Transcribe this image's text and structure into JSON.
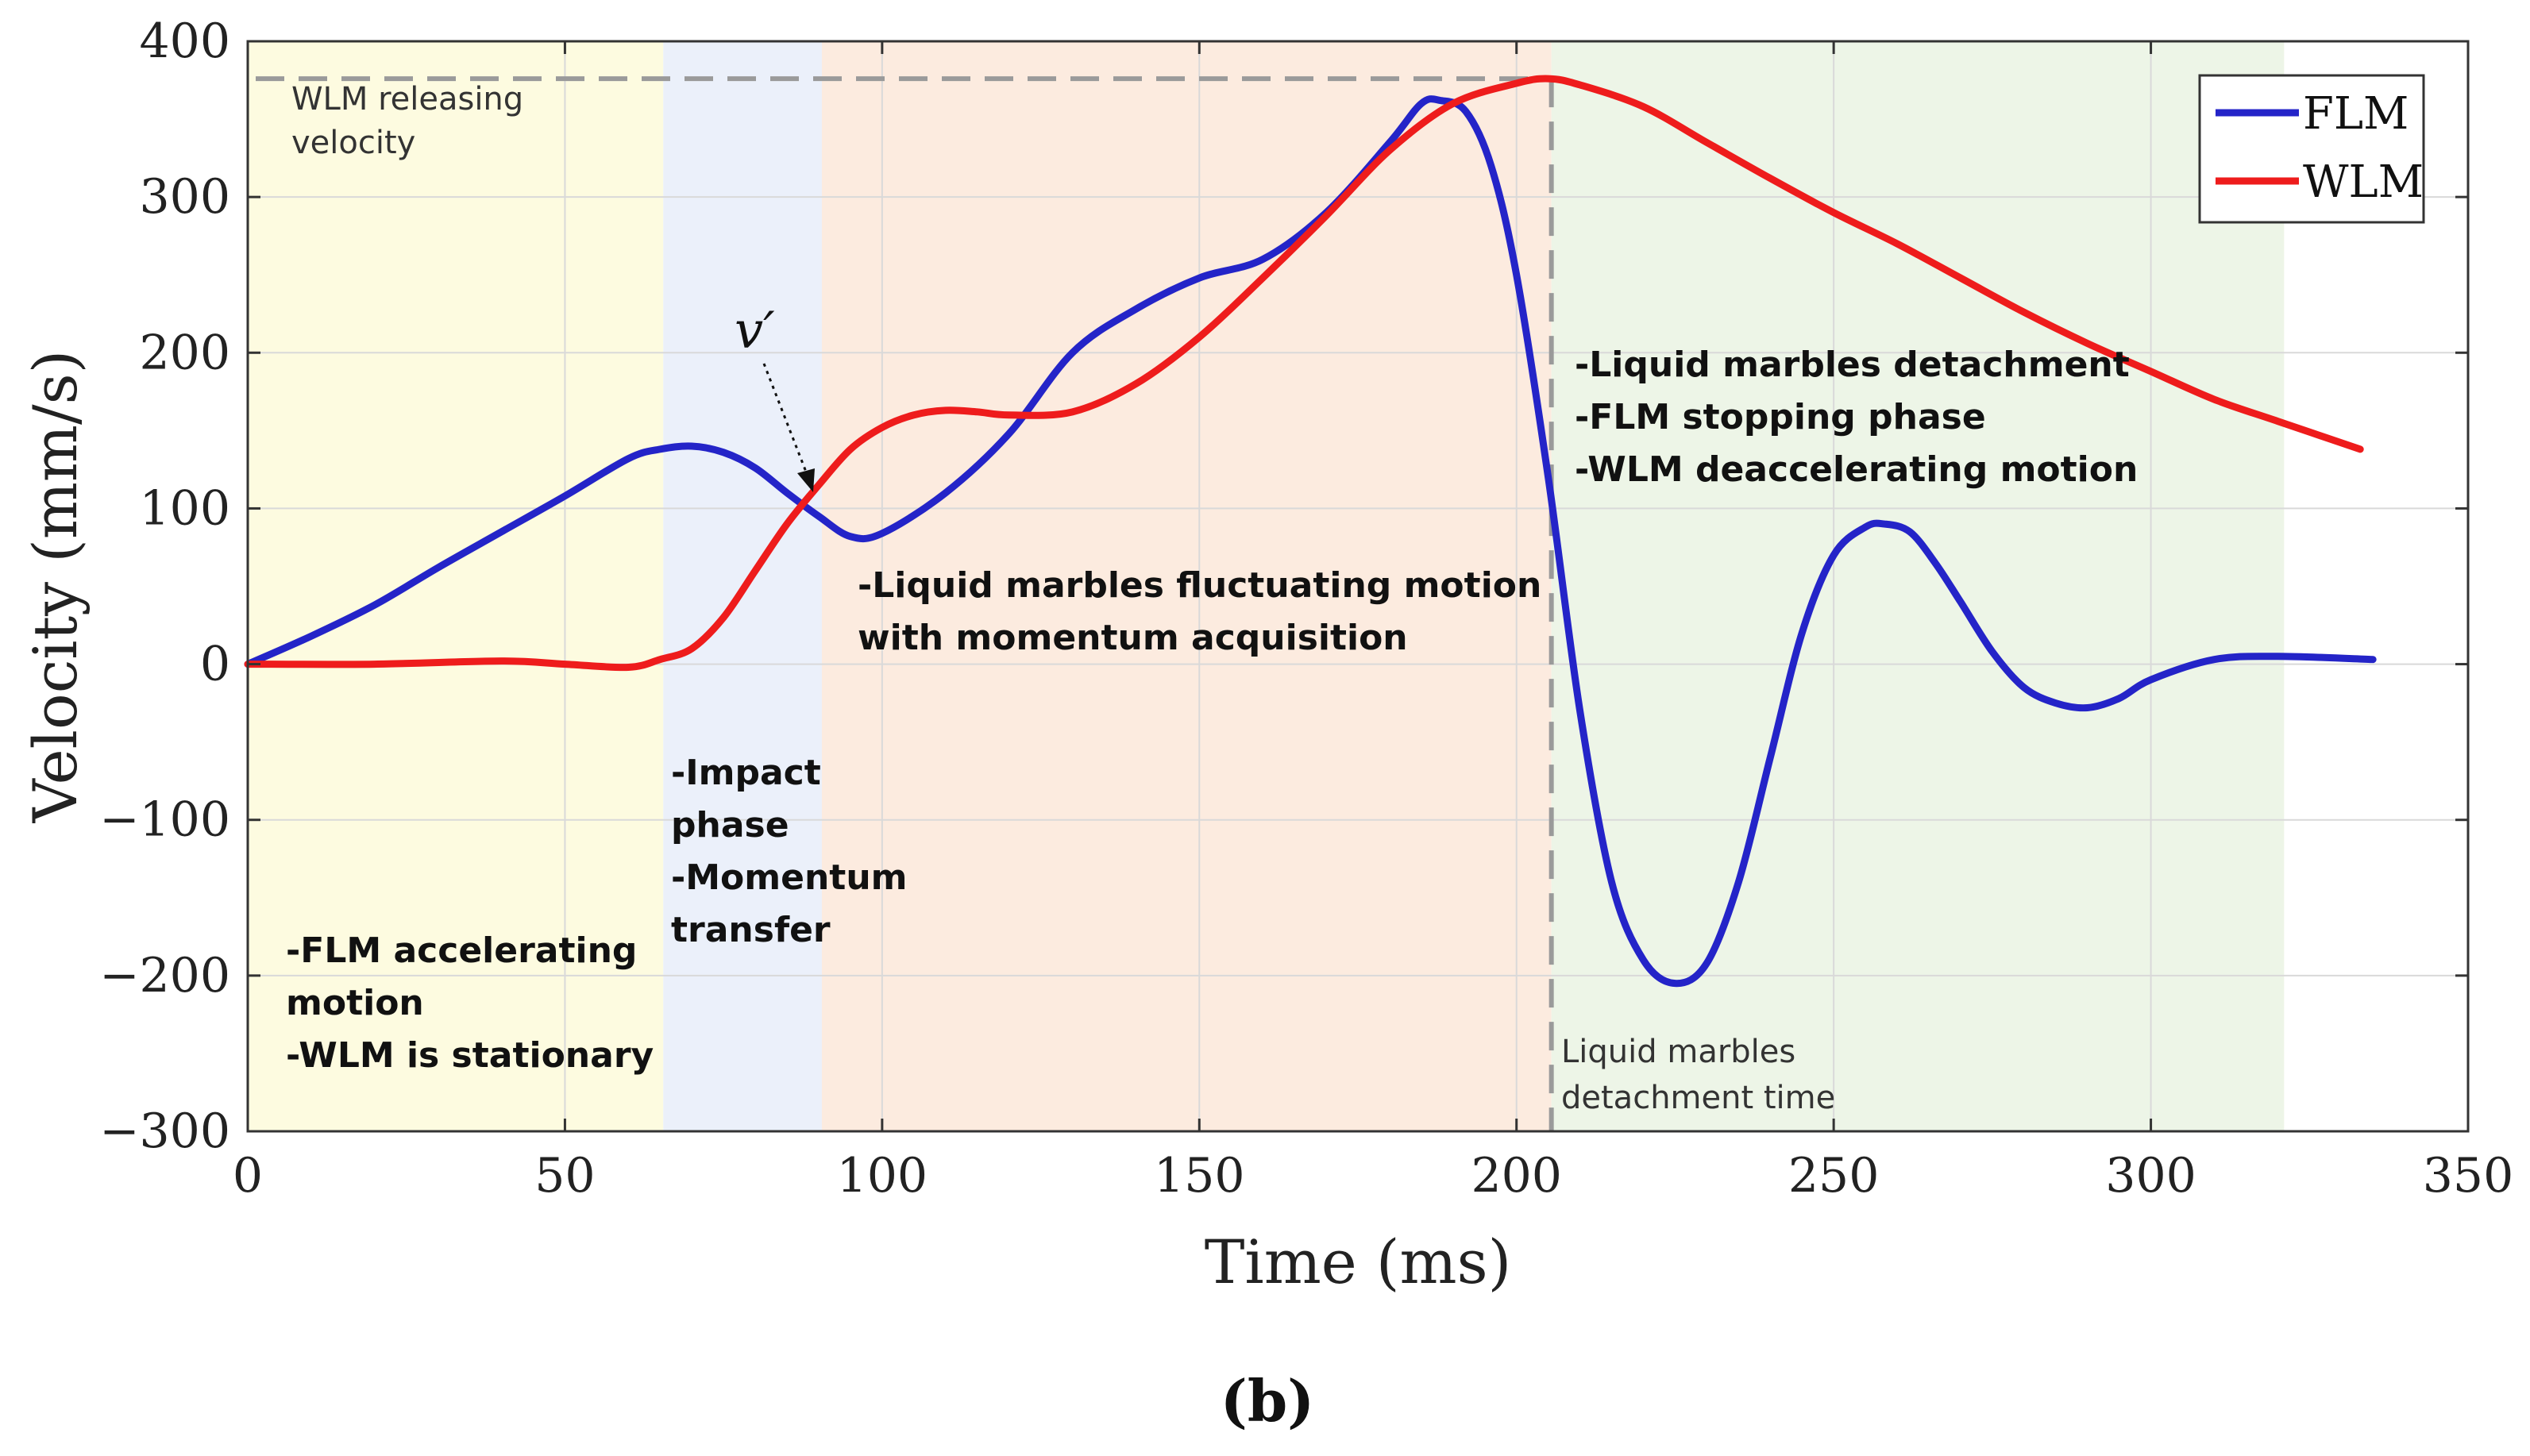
{
  "chart_data": {
    "type": "line",
    "xlabel": "Time (ms)",
    "ylabel": "Velocity (mm/s)",
    "xlim": [
      0,
      350
    ],
    "ylim": [
      -300,
      400
    ],
    "xticks": [
      0,
      50,
      100,
      150,
      200,
      250,
      300,
      350
    ],
    "yticks": [
      -300,
      -200,
      -100,
      0,
      100,
      200,
      300,
      400
    ],
    "xtick_labels": [
      "0",
      "50",
      "100",
      "150",
      "200",
      "250",
      "300",
      "350"
    ],
    "ytick_labels": [
      "−300",
      "−200",
      "−100",
      "0",
      "100",
      "200",
      "300",
      "400"
    ],
    "grid": true,
    "legend_position": "top-right",
    "series": [
      {
        "name": "FLM",
        "color": "#2424c8",
        "x": [
          0,
          10,
          20,
          30,
          40,
          50,
          60,
          65,
          70,
          75,
          80,
          85,
          90,
          95,
          100,
          110,
          120,
          130,
          140,
          150,
          160,
          170,
          180,
          185,
          188,
          192,
          196,
          200,
          205,
          210,
          215,
          220,
          225,
          230,
          235,
          240,
          245,
          250,
          255,
          258,
          262,
          266,
          270,
          275,
          280,
          285,
          290,
          295,
          300,
          310,
          320,
          335
        ],
        "y": [
          0,
          18,
          38,
          62,
          85,
          108,
          132,
          138,
          140,
          136,
          126,
          110,
          95,
          82,
          84,
          110,
          148,
          200,
          228,
          248,
          260,
          290,
          335,
          360,
          362,
          355,
          320,
          250,
          120,
          -30,
          -140,
          -190,
          -205,
          -192,
          -140,
          -60,
          20,
          70,
          88,
          90,
          85,
          65,
          40,
          8,
          -15,
          -25,
          -28,
          -22,
          -10,
          3,
          5,
          3
        ]
      },
      {
        "name": "WLM",
        "color": "#ee1c1c",
        "x": [
          0,
          20,
          40,
          50,
          60,
          65,
          70,
          75,
          80,
          85,
          90,
          95,
          100,
          105,
          110,
          115,
          120,
          130,
          140,
          150,
          160,
          170,
          180,
          190,
          200,
          205,
          210,
          220,
          230,
          240,
          250,
          260,
          270,
          280,
          290,
          300,
          310,
          320,
          333
        ],
        "y": [
          0,
          0,
          2,
          0,
          -2,
          3,
          10,
          30,
          60,
          90,
          115,
          138,
          152,
          160,
          163,
          162,
          160,
          162,
          180,
          210,
          248,
          288,
          330,
          360,
          373,
          376,
          372,
          358,
          335,
          312,
          290,
          270,
          248,
          226,
          206,
          188,
          170,
          156,
          138
        ]
      }
    ],
    "regions": [
      {
        "name": "flm-accelerating",
        "x_start": 0,
        "x_end": 65.5,
        "color": "#fdfbe0"
      },
      {
        "name": "impact",
        "x_start": 65.5,
        "x_end": 90.5,
        "color": "#ebf0fa"
      },
      {
        "name": "fluctuating",
        "x_start": 90.5,
        "x_end": 205.5,
        "color": "#fcebdf"
      },
      {
        "name": "detachment",
        "x_start": 205.5,
        "x_end": 321,
        "color": "#edf5e7"
      }
    ],
    "reference_lines": {
      "release_velocity": 376,
      "detachment_time": 205.5
    },
    "annotations": {
      "release_velocity": [
        "WLM releasing",
        "velocity"
      ],
      "vprime": "v′",
      "phase_accelerating": [
        "-FLM accelerating",
        "motion",
        "-WLM is stationary"
      ],
      "phase_impact": [
        "-Impact",
        "phase",
        "-Momentum",
        "transfer"
      ],
      "phase_fluctuating": [
        "-Liquid marbles fluctuating motion",
        "with momentum acquisition"
      ],
      "phase_detachment": [
        "-Liquid marbles detachment",
        "-FLM stopping phase",
        "-WLM deaccelerating motion"
      ],
      "detachment_time": [
        "Liquid marbles",
        "detachment time"
      ]
    },
    "caption": "(b)"
  }
}
